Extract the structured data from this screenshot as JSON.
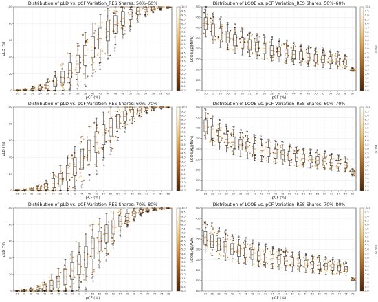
{
  "colorbar": {
    "label": "ESS (h)",
    "ticks": [
      "0.0",
      "0.5",
      "1.0",
      "1.5",
      "2.0",
      "2.5",
      "3.0",
      "3.5",
      "4.0",
      "4.5",
      "5.0",
      "5.5",
      "6.0",
      "6.5",
      "7.0",
      "7.5",
      "8.0",
      "8.5",
      "9.0",
      "9.5",
      "10.0"
    ],
    "colors": [
      "#4a2608",
      "#7e4514",
      "#b06b26",
      "#d49744",
      "#ecc57a",
      "#fbe9c4",
      "#fffdf6"
    ]
  },
  "chart_data": [
    {
      "type": "box",
      "title": "Distribution of pLD vs. pCF Variation_RES Shares: 50%–60%",
      "xlabel": "pCF (%)",
      "ylabel": "pLD (%)",
      "categories": [
        "20",
        "22",
        "24",
        "26",
        "28",
        "30",
        "32",
        "34",
        "36",
        "38",
        "40",
        "42",
        "44",
        "46",
        "48",
        "50",
        "52",
        "54",
        "56",
        "58",
        "60"
      ],
      "ylim": [
        0,
        100
      ],
      "yticks": [
        "0",
        "20",
        "40",
        "60",
        "80",
        "100"
      ],
      "medians": [
        0.2,
        0.8,
        1.5,
        3,
        6,
        10,
        16,
        24,
        32,
        42,
        52,
        62,
        71,
        79,
        86,
        91,
        95,
        97,
        98.5,
        99.3,
        99.8
      ],
      "spread": [
        0.5,
        1,
        2,
        3,
        5,
        8,
        10,
        13,
        15,
        17,
        18,
        18,
        17,
        15,
        12,
        9,
        6,
        4,
        2.5,
        1.5,
        0.6
      ],
      "colorbar": true
    },
    {
      "type": "box",
      "title": "Distribution of LCOE vs. pCF Variation_RES Shares: 50%–60%",
      "xlabel": "pCF (%)",
      "ylabel": "LCOE (€/MWh)",
      "categories": [
        "20",
        "22",
        "24",
        "26",
        "28",
        "30",
        "32",
        "34",
        "36",
        "38",
        "40",
        "42",
        "44",
        "46",
        "48",
        "50",
        "52",
        "54",
        "56",
        "58",
        "60"
      ],
      "ylim": [
        100,
        500
      ],
      "yticks": [
        "100",
        "150",
        "200",
        "250",
        "300",
        "350",
        "400",
        "450",
        "500"
      ],
      "medians": [
        420,
        390,
        370,
        355,
        340,
        328,
        318,
        308,
        300,
        292,
        285,
        278,
        272,
        266,
        260,
        255,
        250,
        245,
        240,
        235,
        200
      ],
      "spread": [
        40,
        40,
        40,
        38,
        38,
        36,
        35,
        34,
        33,
        32,
        31,
        30,
        29,
        28,
        27,
        26,
        25,
        24,
        23,
        18,
        5
      ],
      "colorbar": true
    },
    {
      "type": "box",
      "title": "Distribution of pLD vs. pCF Variation_RES Shares: 60%–70%",
      "xlabel": "pCF (%)",
      "ylabel": "pLD (%)",
      "categories": [
        "26",
        "28",
        "30",
        "32",
        "34",
        "36",
        "38",
        "40",
        "42",
        "44",
        "46",
        "48",
        "50",
        "52",
        "54",
        "56",
        "58",
        "60",
        "62",
        "64",
        "66",
        "68"
      ],
      "ylim": [
        0,
        100
      ],
      "yticks": [
        "0",
        "20",
        "40",
        "60",
        "80",
        "100"
      ],
      "medians": [
        0.2,
        0.6,
        1.2,
        2.5,
        5,
        9,
        14,
        21,
        29,
        38,
        48,
        58,
        67,
        76,
        83,
        89,
        93,
        96,
        98,
        99.2,
        99.7,
        99.9
      ],
      "spread": [
        0.5,
        1,
        2,
        3,
        5,
        8,
        10,
        13,
        15,
        17,
        18,
        18,
        17,
        15,
        12,
        9,
        6,
        4,
        2.5,
        1.5,
        0.8,
        0.4
      ],
      "colorbar": true
    },
    {
      "type": "box",
      "title": "Distribution of LCOE vs. pCF Variation_RES Shares: 60%–70%",
      "xlabel": "pCF (%)",
      "ylabel": "LCOE (€/MWh)",
      "categories": [
        "26",
        "28",
        "30",
        "32",
        "34",
        "36",
        "38",
        "40",
        "42",
        "44",
        "46",
        "48",
        "50",
        "52",
        "54",
        "56",
        "58",
        "60",
        "62",
        "64",
        "66",
        "68"
      ],
      "ylim": [
        100,
        500
      ],
      "yticks": [
        "100",
        "150",
        "200",
        "250",
        "300",
        "350",
        "400",
        "450",
        "500"
      ],
      "medians": [
        410,
        380,
        360,
        345,
        332,
        320,
        310,
        300,
        292,
        285,
        278,
        272,
        266,
        260,
        255,
        250,
        245,
        240,
        235,
        230,
        222,
        185
      ],
      "spread": [
        40,
        40,
        40,
        38,
        38,
        36,
        35,
        34,
        33,
        32,
        31,
        30,
        29,
        28,
        27,
        26,
        25,
        24,
        23,
        22,
        20,
        10
      ],
      "colorbar": true
    },
    {
      "type": "box",
      "title": "Distribution of pLD vs. pCF Variation_RES Shares: 70%–80%",
      "xlabel": "pCF (%)",
      "ylabel": "pLD (%)",
      "categories": [
        "34",
        "36",
        "38",
        "40",
        "42",
        "44",
        "46",
        "48",
        "50",
        "52",
        "54",
        "56",
        "58",
        "60",
        "62",
        "64",
        "66",
        "68",
        "70",
        "72",
        "74",
        "76",
        "78"
      ],
      "ylim": [
        0,
        100
      ],
      "yticks": [
        "0",
        "20",
        "40",
        "60",
        "80",
        "100"
      ],
      "medians": [
        0.2,
        0.5,
        1,
        2,
        4,
        7,
        11,
        17,
        24,
        32,
        41,
        51,
        60,
        69,
        77,
        84,
        89,
        93,
        96,
        98,
        99,
        99.6,
        99.9
      ],
      "spread": [
        0.5,
        1,
        2,
        3,
        5,
        8,
        10,
        13,
        15,
        17,
        18,
        18,
        17,
        15,
        12,
        9,
        6,
        4,
        2.5,
        1.5,
        1,
        0.6,
        0.3
      ],
      "colorbar": true
    },
    {
      "type": "box",
      "title": "Distribution of LCOE vs. pCF Variation_RES Shares: 70%–80%",
      "xlabel": "pCF (%)",
      "ylabel": "LCOE (€/MWh)",
      "categories": [
        "34",
        "36",
        "38",
        "40",
        "42",
        "44",
        "46",
        "48",
        "50",
        "52",
        "54",
        "56",
        "58",
        "60",
        "62",
        "64",
        "66",
        "68",
        "70",
        "72",
        "74",
        "76",
        "78"
      ],
      "ylim": [
        100,
        500
      ],
      "yticks": [
        "100",
        "150",
        "200",
        "250",
        "300",
        "350",
        "400",
        "450",
        "500"
      ],
      "medians": [
        355,
        340,
        325,
        312,
        302,
        292,
        284,
        276,
        269,
        262,
        256,
        250,
        245,
        240,
        235,
        230,
        226,
        222,
        218,
        214,
        210,
        205,
        155
      ],
      "spread": [
        45,
        44,
        42,
        40,
        38,
        36,
        35,
        34,
        33,
        32,
        31,
        30,
        29,
        28,
        27,
        26,
        25,
        24,
        23,
        22,
        20,
        18,
        5
      ],
      "colorbar": true
    }
  ]
}
